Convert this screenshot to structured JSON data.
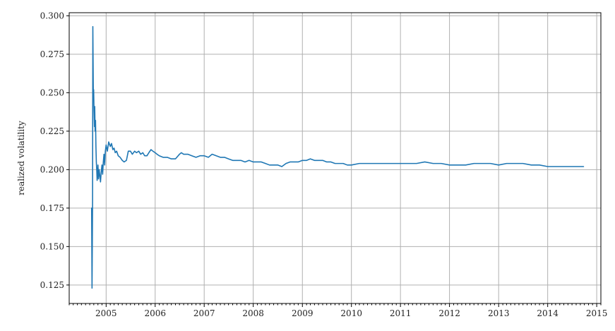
{
  "chart_data": {
    "type": "line",
    "title": "",
    "xlabel": "",
    "ylabel": "realized volatility",
    "xlim": [
      "2004-04-01",
      "2015-02-01"
    ],
    "ylim": [
      0.113,
      0.302
    ],
    "grid": true,
    "legend": "none",
    "line_color": "#1f77b4",
    "x_tick_labels": [
      "2005",
      "2006",
      "2007",
      "2008",
      "2009",
      "2010",
      "2011",
      "2012",
      "2013",
      "2014",
      "2015"
    ],
    "x_ticks": [
      "2005-01-01",
      "2006-01-01",
      "2007-01-01",
      "2008-01-01",
      "2009-01-01",
      "2010-01-01",
      "2011-01-01",
      "2012-01-01",
      "2013-01-01",
      "2014-01-01",
      "2015-01-01"
    ],
    "y_ticks": [
      0.125,
      0.15,
      0.175,
      0.2,
      0.225,
      0.25,
      0.275,
      0.3
    ],
    "y_tick_labels": [
      "0.125",
      "0.150",
      "0.175",
      "0.200",
      "0.225",
      "0.250",
      "0.275",
      "0.300"
    ],
    "series": [
      {
        "x": [
          "2004-09-15",
          "2004-09-18",
          "2004-09-20",
          "2004-09-22",
          "2004-09-24",
          "2004-09-26",
          "2004-09-28",
          "2004-09-30",
          "2004-10-03",
          "2004-10-06",
          "2004-10-08",
          "2004-10-11",
          "2004-10-14",
          "2004-10-17",
          "2004-10-20",
          "2004-10-23",
          "2004-10-26",
          "2004-10-29",
          "2004-11-01",
          "2004-11-05",
          "2004-11-10",
          "2004-11-15",
          "2004-11-20",
          "2004-11-25",
          "2004-12-01",
          "2004-12-06",
          "2004-12-11",
          "2004-12-16",
          "2004-12-21",
          "2004-12-26",
          "2005-01-01",
          "2005-01-10",
          "2005-01-20",
          "2005-02-01",
          "2005-02-10",
          "2005-02-20",
          "2005-03-01",
          "2005-03-10",
          "2005-03-20",
          "2005-04-01",
          "2005-04-15",
          "2005-05-01",
          "2005-05-15",
          "2005-06-01",
          "2005-06-15",
          "2005-07-01",
          "2005-07-15",
          "2005-08-01",
          "2005-08-15",
          "2005-09-01",
          "2005-09-15",
          "2005-10-01",
          "2005-10-15",
          "2005-11-01",
          "2005-11-15",
          "2005-12-01",
          "2005-12-15",
          "2006-01-01",
          "2006-01-15",
          "2006-02-01",
          "2006-03-01",
          "2006-04-01",
          "2006-05-01",
          "2006-06-01",
          "2006-07-01",
          "2006-07-15",
          "2006-08-01",
          "2006-09-01",
          "2006-10-01",
          "2006-11-01",
          "2006-12-01",
          "2007-01-01",
          "2007-02-01",
          "2007-03-01",
          "2007-04-01",
          "2007-05-01",
          "2007-06-01",
          "2007-07-01",
          "2007-08-01",
          "2007-09-01",
          "2007-10-01",
          "2007-11-01",
          "2007-12-01",
          "2008-01-01",
          "2008-02-01",
          "2008-03-01",
          "2008-04-01",
          "2008-05-01",
          "2008-06-01",
          "2008-07-01",
          "2008-08-01",
          "2008-09-01",
          "2008-10-01",
          "2008-11-01",
          "2008-12-01",
          "2009-01-01",
          "2009-02-01",
          "2009-03-01",
          "2009-04-01",
          "2009-05-01",
          "2009-06-01",
          "2009-07-01",
          "2009-08-01",
          "2009-09-01",
          "2009-10-01",
          "2009-11-01",
          "2009-12-01",
          "2010-01-01",
          "2010-03-01",
          "2010-05-01",
          "2010-07-01",
          "2010-09-01",
          "2010-11-01",
          "2011-01-01",
          "2011-03-01",
          "2011-05-01",
          "2011-07-01",
          "2011-09-01",
          "2011-11-01",
          "2012-01-01",
          "2012-03-01",
          "2012-05-01",
          "2012-07-01",
          "2012-09-01",
          "2012-11-01",
          "2013-01-01",
          "2013-03-01",
          "2013-05-01",
          "2013-07-01",
          "2013-09-01",
          "2013-11-01",
          "2014-01-01",
          "2014-03-01",
          "2014-05-01",
          "2014-07-01",
          "2014-09-01",
          "2014-09-25"
        ],
        "y": [
          0.175,
          0.123,
          0.15,
          0.18,
          0.293,
          0.27,
          0.245,
          0.252,
          0.238,
          0.228,
          0.241,
          0.225,
          0.232,
          0.215,
          0.205,
          0.2,
          0.193,
          0.198,
          0.203,
          0.194,
          0.2,
          0.196,
          0.192,
          0.198,
          0.203,
          0.197,
          0.205,
          0.21,
          0.203,
          0.212,
          0.216,
          0.212,
          0.218,
          0.215,
          0.217,
          0.213,
          0.214,
          0.211,
          0.212,
          0.209,
          0.208,
          0.206,
          0.205,
          0.206,
          0.212,
          0.212,
          0.21,
          0.212,
          0.211,
          0.212,
          0.21,
          0.211,
          0.209,
          0.209,
          0.211,
          0.213,
          0.212,
          0.211,
          0.21,
          0.209,
          0.208,
          0.208,
          0.207,
          0.207,
          0.21,
          0.211,
          0.21,
          0.21,
          0.209,
          0.208,
          0.209,
          0.209,
          0.208,
          0.21,
          0.209,
          0.208,
          0.208,
          0.207,
          0.206,
          0.206,
          0.206,
          0.205,
          0.206,
          0.205,
          0.205,
          0.205,
          0.204,
          0.203,
          0.203,
          0.203,
          0.202,
          0.204,
          0.205,
          0.205,
          0.205,
          0.206,
          0.206,
          0.207,
          0.206,
          0.206,
          0.206,
          0.205,
          0.205,
          0.204,
          0.204,
          0.204,
          0.203,
          0.203,
          0.204,
          0.204,
          0.204,
          0.204,
          0.204,
          0.204,
          0.204,
          0.204,
          0.205,
          0.204,
          0.204,
          0.203,
          0.203,
          0.203,
          0.204,
          0.204,
          0.204,
          0.203,
          0.204,
          0.204,
          0.204,
          0.203,
          0.203,
          0.202,
          0.202,
          0.202,
          0.202,
          0.202,
          0.202
        ]
      }
    ]
  }
}
